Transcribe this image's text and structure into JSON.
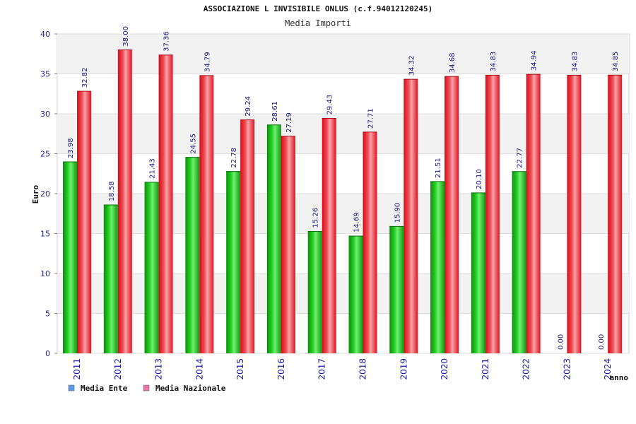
{
  "chart_data": {
    "type": "bar",
    "title": "ASSOCIAZIONE L INVISIBILE ONLUS (c.f.94012120245)",
    "subtitle": "Media Importi",
    "xlabel": "anno",
    "ylabel": "Euro",
    "categories": [
      "2011",
      "2012",
      "2013",
      "2014",
      "2015",
      "2016",
      "2017",
      "2018",
      "2019",
      "2020",
      "2021",
      "2022",
      "2023",
      "2024"
    ],
    "ylim": [
      0,
      40
    ],
    "yticks": [
      0,
      5,
      10,
      15,
      20,
      25,
      30,
      35,
      40
    ],
    "grid": true,
    "legend_position": "bottom-left",
    "series": [
      {
        "name": "Media Ente",
        "color": "#1db31d",
        "legend_color": "#5b9be8",
        "values": [
          23.98,
          18.58,
          21.43,
          24.55,
          22.78,
          28.61,
          15.26,
          14.69,
          15.9,
          21.51,
          20.1,
          22.77,
          0.0,
          0.0
        ],
        "labels": [
          "23.98",
          "18.58",
          "21.43",
          "24.55",
          "22.78",
          "28.61",
          "15.26",
          "14.69",
          "15.90",
          "21.51",
          "20.10",
          "22.77",
          "0.00",
          "0.00"
        ]
      },
      {
        "name": "Media Nazionale",
        "color": "#e8202a",
        "legend_color": "#e87aa8",
        "values": [
          32.82,
          38.0,
          37.36,
          34.79,
          29.24,
          27.19,
          29.43,
          27.71,
          34.32,
          34.68,
          34.83,
          34.94,
          34.83,
          34.85
        ],
        "labels": [
          "32.82",
          "38.00",
          "37.36",
          "34.79",
          "29.24",
          "27.19",
          "29.43",
          "27.71",
          "34.32",
          "34.68",
          "34.83",
          "34.94",
          "34.83",
          "34.85"
        ]
      }
    ]
  }
}
